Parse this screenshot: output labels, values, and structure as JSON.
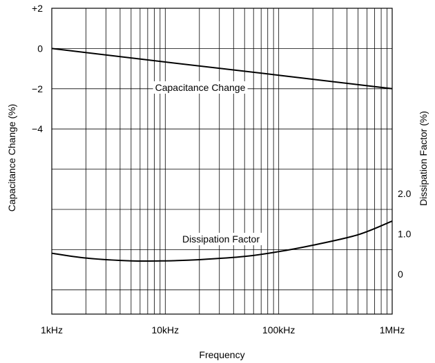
{
  "chart_data": {
    "type": "line",
    "title": "",
    "xlabel": "Frequency",
    "ylabel_left": "Capacitance Change (%)",
    "ylabel_right": "Dissipation Factor (%)",
    "x_scale": "log",
    "xlim": [
      1000,
      1000000
    ],
    "x_ticks": [
      {
        "value": 1000,
        "label": "1kHz"
      },
      {
        "value": 10000,
        "label": "10kHz"
      },
      {
        "value": 100000,
        "label": "100kHz"
      },
      {
        "value": 1000000,
        "label": "1MHz"
      }
    ],
    "left_axis": {
      "ticks": [
        {
          "value": 2,
          "label": "+2"
        },
        {
          "value": 0,
          "label": "0"
        },
        {
          "value": -2,
          "label": "−2"
        },
        {
          "value": -4,
          "label": "−4"
        }
      ]
    },
    "right_axis": {
      "ticks": [
        {
          "value": 2.0,
          "label": "2.0"
        },
        {
          "value": 1.0,
          "label": "1.0"
        },
        {
          "value": 0,
          "label": "0"
        }
      ]
    },
    "grid": true,
    "series": [
      {
        "name": "Capacitance Change",
        "axis": "left",
        "x": [
          1000,
          10000,
          100000,
          1000000
        ],
        "y": [
          0,
          -0.67,
          -1.33,
          -2.0
        ]
      },
      {
        "name": "Dissipation Factor",
        "axis": "right",
        "x": [
          1000,
          2000,
          5000,
          10000,
          20000,
          50000,
          100000,
          200000,
          500000,
          1000000
        ],
        "y": [
          0.52,
          0.4,
          0.33,
          0.33,
          0.36,
          0.44,
          0.56,
          0.72,
          0.98,
          1.32
        ]
      }
    ]
  }
}
